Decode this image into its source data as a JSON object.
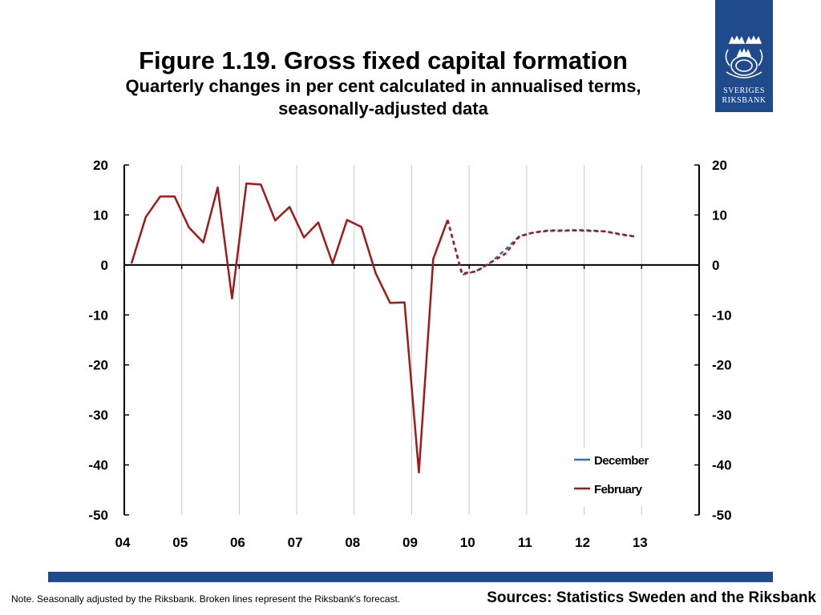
{
  "header": {
    "title": "Figure 1.19. Gross fixed capital formation",
    "subtitle_line1": "Quarterly changes in per cent calculated in annualised terms,",
    "subtitle_line2": "seasonally-adjusted data"
  },
  "logo": {
    "line1": "SVERIGES",
    "line2": "RIKSBANK",
    "icon": "crown-emblem-icon"
  },
  "footer": {
    "note": "Note. Seasonally adjusted by the Riksbank. Broken lines represent the Riksbank's forecast.",
    "sources": "Sources: Statistics Sweden and the Riksbank"
  },
  "colors": {
    "december": "#2e75b6",
    "february": "#a01a1a",
    "brand": "#1f4a8c"
  },
  "chart_data": {
    "type": "line",
    "x_ticks": [
      "04",
      "05",
      "06",
      "07",
      "08",
      "09",
      "10",
      "11",
      "12",
      "13"
    ],
    "ylim": [
      -50,
      20
    ],
    "y_ticks": [
      20,
      10,
      0,
      -10,
      -20,
      -30,
      -40,
      -50
    ],
    "y_ticks_right": true,
    "grid": "vertical",
    "legend_position": "bottom-right",
    "series": [
      {
        "name": "December",
        "color": "#2e75b6",
        "points": [
          [
            2009.625,
            9.0
          ],
          [
            2009.875,
            -2.0
          ],
          [
            2010.125,
            -1.2
          ],
          [
            2010.375,
            0.5
          ],
          [
            2010.625,
            3.0
          ],
          [
            2010.875,
            5.8
          ],
          [
            2011.125,
            6.5
          ],
          [
            2011.375,
            6.8
          ],
          [
            2011.625,
            6.8
          ],
          [
            2011.875,
            7.0
          ],
          [
            2012.125,
            6.9
          ],
          [
            2012.375,
            6.7
          ],
          [
            2012.625,
            6.2
          ],
          [
            2012.875,
            5.7
          ]
        ],
        "forecast_from_index": 0
      },
      {
        "name": "February",
        "color": "#a01a1a",
        "points": [
          [
            2004.125,
            0.3
          ],
          [
            2004.375,
            9.6
          ],
          [
            2004.625,
            13.7
          ],
          [
            2004.875,
            13.7
          ],
          [
            2005.125,
            7.5
          ],
          [
            2005.375,
            4.5
          ],
          [
            2005.625,
            15.5
          ],
          [
            2005.875,
            -6.7
          ],
          [
            2006.125,
            16.3
          ],
          [
            2006.375,
            16.1
          ],
          [
            2006.625,
            8.9
          ],
          [
            2006.875,
            11.6
          ],
          [
            2007.125,
            5.5
          ],
          [
            2007.375,
            8.5
          ],
          [
            2007.625,
            0.3
          ],
          [
            2007.875,
            9.0
          ],
          [
            2008.125,
            7.6
          ],
          [
            2008.375,
            -1.7
          ],
          [
            2008.625,
            -7.6
          ],
          [
            2008.875,
            -7.5
          ],
          [
            2009.125,
            -41.5
          ],
          [
            2009.375,
            1.2
          ],
          [
            2009.625,
            9.0
          ],
          [
            2009.875,
            -1.7
          ],
          [
            2010.125,
            -1.3
          ],
          [
            2010.375,
            0.5
          ],
          [
            2010.625,
            2.2
          ],
          [
            2010.875,
            5.7
          ],
          [
            2011.125,
            6.5
          ],
          [
            2011.375,
            6.9
          ],
          [
            2011.625,
            6.9
          ],
          [
            2011.875,
            6.9
          ],
          [
            2012.125,
            6.8
          ],
          [
            2012.375,
            6.7
          ],
          [
            2012.625,
            6.1
          ],
          [
            2012.875,
            5.7
          ]
        ],
        "forecast_from_index": 22
      }
    ]
  }
}
